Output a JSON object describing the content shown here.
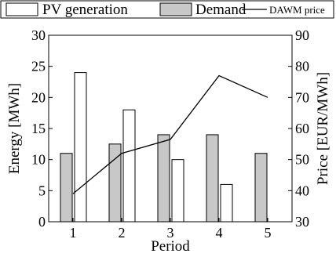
{
  "chart_data": {
    "type": "bar",
    "categories": [
      "1",
      "2",
      "3",
      "4",
      "5"
    ],
    "xlabel": "Period",
    "ylabel": "Energy [MWh]",
    "ylabel_right": "Price [EUR/MWh]",
    "ylim": [
      0,
      30
    ],
    "ylim_right": [
      30,
      90
    ],
    "yticks": [
      "0",
      "5",
      "10",
      "15",
      "20",
      "25",
      "30"
    ],
    "yticks_right": [
      "30",
      "40",
      "50",
      "60",
      "70",
      "80",
      "90"
    ],
    "grid": false,
    "legend_position": "top",
    "series": [
      {
        "name": "Demand",
        "type": "bar",
        "axis": "left",
        "values": [
          11,
          12.5,
          14,
          14,
          11
        ],
        "color": "#c8c8c8"
      },
      {
        "name": "PV generation",
        "type": "bar",
        "axis": "left",
        "values": [
          24,
          18,
          10,
          6,
          0
        ],
        "color": "#ffffff"
      },
      {
        "name": "DAWM price",
        "type": "line",
        "axis": "right",
        "values": [
          39,
          52,
          56.5,
          77,
          70
        ],
        "color": "#000000"
      }
    ]
  }
}
